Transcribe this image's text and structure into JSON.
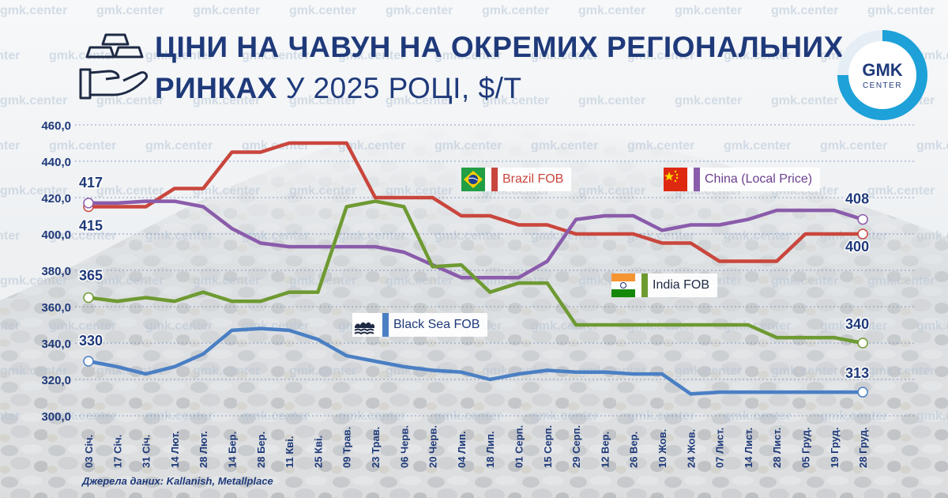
{
  "title": {
    "line1": "ЦІНИ НА ЧАВУН НА ОКРЕМИХ РЕГІОНАЛЬНИХ",
    "line2_bold": "РИНКАХ",
    "line2_thin": "У 2025 РОЦІ, $/Т"
  },
  "watermark_text": "gmk.center",
  "logo": {
    "top": "GMK",
    "bottom": "CENTER"
  },
  "source": "Джерела даних: Kallanish, Metallplace",
  "colors": {
    "title": "#1f3a7a",
    "brazil": "#c9463d",
    "china": "#8a5cab",
    "india": "#6e9a32",
    "blacksea": "#4a7fc4",
    "logo_ring": "#1da1d8"
  },
  "icons": [
    "gold-bars-hand-icon",
    "brazil-flag-icon",
    "china-flag-icon",
    "india-flag-icon",
    "sea-waves-icon"
  ],
  "chart_data": {
    "type": "line",
    "ylim": [
      300,
      460
    ],
    "yticks": [
      "300,0",
      "320,0",
      "340,0",
      "360,0",
      "380,0",
      "400,0",
      "420,0",
      "440,0",
      "460,0"
    ],
    "ytick_values": [
      300,
      320,
      340,
      360,
      380,
      400,
      420,
      440,
      460
    ],
    "x": [
      "03 Січ.",
      "17 Січ.",
      "31 Січ.",
      "14 Лют.",
      "28 Лют.",
      "14 Бер.",
      "28 Бер.",
      "11 Кві.",
      "25 Кві.",
      "09 Трав.",
      "23 Трав.",
      "06 Черв.",
      "20 Черв.",
      "04 Лип.",
      "18 Лип.",
      "01 Серп.",
      "15 Серп.",
      "29 Серп.",
      "12 Вер.",
      "26 Вер.",
      "10 Жов.",
      "24 Жов.",
      "07 Лист.",
      "14 Лист.",
      "28 Лист.",
      "05 Груд.",
      "19 Груд.",
      "28 Груд."
    ],
    "series": [
      {
        "name": "Brazil FOB",
        "color": "#c9463d",
        "start_label": "415",
        "end_label": "400",
        "values": [
          415,
          415,
          415,
          425,
          425,
          445,
          445,
          450,
          450,
          450,
          420,
          420,
          420,
          410,
          410,
          405,
          405,
          400,
          400,
          400,
          395,
          395,
          385,
          385,
          385,
          400,
          400,
          400
        ]
      },
      {
        "name": "China (Local Price)",
        "color": "#8a5cab",
        "start_label": "417",
        "end_label": "408",
        "values": [
          417,
          417,
          418,
          418,
          415,
          403,
          395,
          393,
          393,
          393,
          393,
          390,
          383,
          376,
          376,
          376,
          385,
          408,
          410,
          410,
          402,
          405,
          405,
          408,
          413,
          413,
          413,
          408
        ]
      },
      {
        "name": "India FOB",
        "color": "#6e9a32",
        "start_label": "365",
        "end_label": "340",
        "values": [
          365,
          363,
          365,
          363,
          368,
          363,
          363,
          368,
          368,
          415,
          418,
          415,
          382,
          383,
          368,
          373,
          373,
          350,
          350,
          350,
          350,
          350,
          350,
          350,
          343,
          343,
          343,
          340
        ]
      },
      {
        "name": "Black Sea FOB",
        "color": "#4a7fc4",
        "start_label": "330",
        "end_label": "313",
        "values": [
          330,
          327,
          323,
          327,
          334,
          347,
          348,
          347,
          342,
          333,
          330,
          327,
          325,
          324,
          320,
          323,
          325,
          324,
          324,
          323,
          323,
          312,
          313,
          313,
          313,
          313,
          313,
          313
        ]
      }
    ]
  }
}
